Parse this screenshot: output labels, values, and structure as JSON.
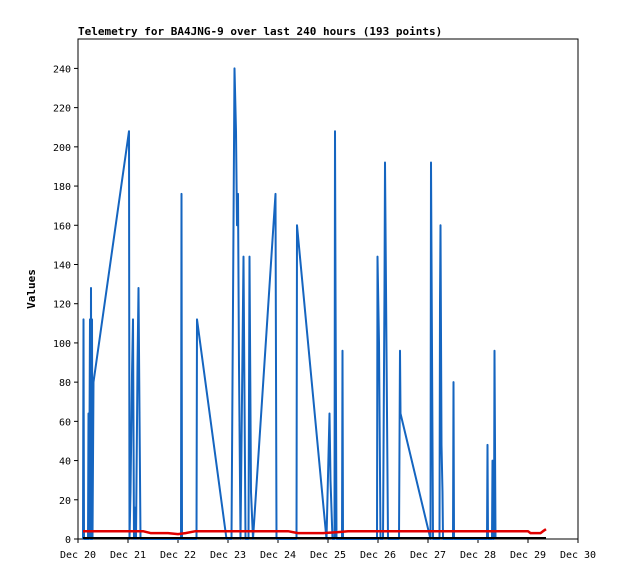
{
  "chart_data": {
    "type": "line",
    "title": "Telemetry for BA4JNG-9 over last 240 hours (193 points)",
    "xlabel": "",
    "ylabel": "Values",
    "xlim": [
      0,
      10
    ],
    "ylim": [
      0,
      255
    ],
    "x_ticks": [
      "Dec 20",
      "Dec 21",
      "Dec 22",
      "Dec 23",
      "Dec 24",
      "Dec 25",
      "Dec 26",
      "Dec 27",
      "Dec 28",
      "Dec 29",
      "Dec 30"
    ],
    "y_ticks": [
      0,
      20,
      40,
      60,
      80,
      100,
      120,
      140,
      160,
      180,
      200,
      220,
      240
    ],
    "grid": false,
    "colors": {
      "series1": "#1565c0",
      "series2": "#e00000",
      "series3": "#000000"
    },
    "series": [
      {
        "name": "",
        "color": "#1565c0",
        "points": [
          [
            0.1,
            0
          ],
          [
            0.11,
            112
          ],
          [
            0.12,
            0
          ],
          [
            0.2,
            0
          ],
          [
            0.21,
            64
          ],
          [
            0.22,
            0
          ],
          [
            0.24,
            112
          ],
          [
            0.25,
            0
          ],
          [
            0.26,
            128
          ],
          [
            0.27,
            0
          ],
          [
            0.28,
            112
          ],
          [
            0.29,
            0
          ],
          [
            0.31,
            80
          ],
          [
            1.02,
            208
          ],
          [
            1.03,
            0
          ],
          [
            1.05,
            24
          ],
          [
            1.08,
            84
          ],
          [
            1.1,
            112
          ],
          [
            1.12,
            0
          ],
          [
            1.14,
            16
          ],
          [
            1.16,
            0
          ],
          [
            1.19,
            88
          ],
          [
            1.21,
            128
          ],
          [
            1.23,
            64
          ],
          [
            1.25,
            0
          ],
          [
            2.06,
            0
          ],
          [
            2.07,
            176
          ],
          [
            2.08,
            0
          ],
          [
            2.37,
            0
          ],
          [
            2.38,
            112
          ],
          [
            2.97,
            0
          ],
          [
            3.07,
            0
          ],
          [
            3.1,
            120
          ],
          [
            3.13,
            240
          ],
          [
            3.16,
            208
          ],
          [
            3.18,
            160
          ],
          [
            3.2,
            176
          ],
          [
            3.22,
            88
          ],
          [
            3.25,
            0
          ],
          [
            3.31,
            144
          ],
          [
            3.35,
            0
          ],
          [
            3.41,
            0
          ],
          [
            3.43,
            144
          ],
          [
            3.46,
            24
          ],
          [
            3.5,
            0
          ],
          [
            3.95,
            176
          ],
          [
            3.97,
            0
          ],
          [
            4.37,
            0
          ],
          [
            4.38,
            160
          ],
          [
            4.97,
            0
          ],
          [
            5.03,
            64
          ],
          [
            5.05,
            30
          ],
          [
            5.09,
            0
          ],
          [
            5.13,
            0
          ],
          [
            5.14,
            208
          ],
          [
            5.15,
            128
          ],
          [
            5.17,
            0
          ],
          [
            5.28,
            0
          ],
          [
            5.29,
            96
          ],
          [
            5.3,
            0
          ],
          [
            5.98,
            0
          ],
          [
            5.99,
            144
          ],
          [
            6.02,
            100
          ],
          [
            6.05,
            0
          ],
          [
            6.1,
            0
          ],
          [
            6.13,
            128
          ],
          [
            6.14,
            192
          ],
          [
            6.16,
            128
          ],
          [
            6.2,
            0
          ],
          [
            6.42,
            0
          ],
          [
            6.44,
            96
          ],
          [
            6.45,
            64
          ],
          [
            7.05,
            0
          ],
          [
            7.06,
            192
          ],
          [
            7.08,
            96
          ],
          [
            7.1,
            0
          ],
          [
            7.23,
            0
          ],
          [
            7.24,
            120
          ],
          [
            7.25,
            160
          ],
          [
            7.27,
            48
          ],
          [
            7.29,
            24
          ],
          [
            7.3,
            0
          ],
          [
            7.5,
            0
          ],
          [
            7.51,
            80
          ],
          [
            7.52,
            0
          ],
          [
            8.18,
            0
          ],
          [
            8.19,
            48
          ],
          [
            8.2,
            0
          ],
          [
            8.28,
            0
          ],
          [
            8.29,
            40
          ],
          [
            8.3,
            0
          ],
          [
            8.32,
            0
          ],
          [
            8.33,
            96
          ],
          [
            8.35,
            0
          ]
        ]
      },
      {
        "name": "",
        "color": "#e00000",
        "points": [
          [
            0.1,
            4
          ],
          [
            1.3,
            4
          ],
          [
            1.45,
            3
          ],
          [
            1.8,
            3
          ],
          [
            2.0,
            2.5
          ],
          [
            2.15,
            3
          ],
          [
            2.35,
            4
          ],
          [
            4.2,
            4
          ],
          [
            4.4,
            3
          ],
          [
            4.9,
            3
          ],
          [
            5.2,
            3.5
          ],
          [
            5.4,
            4
          ],
          [
            9.0,
            4
          ],
          [
            9.05,
            3
          ],
          [
            9.25,
            3
          ],
          [
            9.3,
            4
          ],
          [
            9.36,
            5
          ]
        ]
      },
      {
        "name": "",
        "color": "#000000",
        "points": [
          [
            0.1,
            0.5
          ],
          [
            9.36,
            0.5
          ]
        ]
      }
    ]
  }
}
